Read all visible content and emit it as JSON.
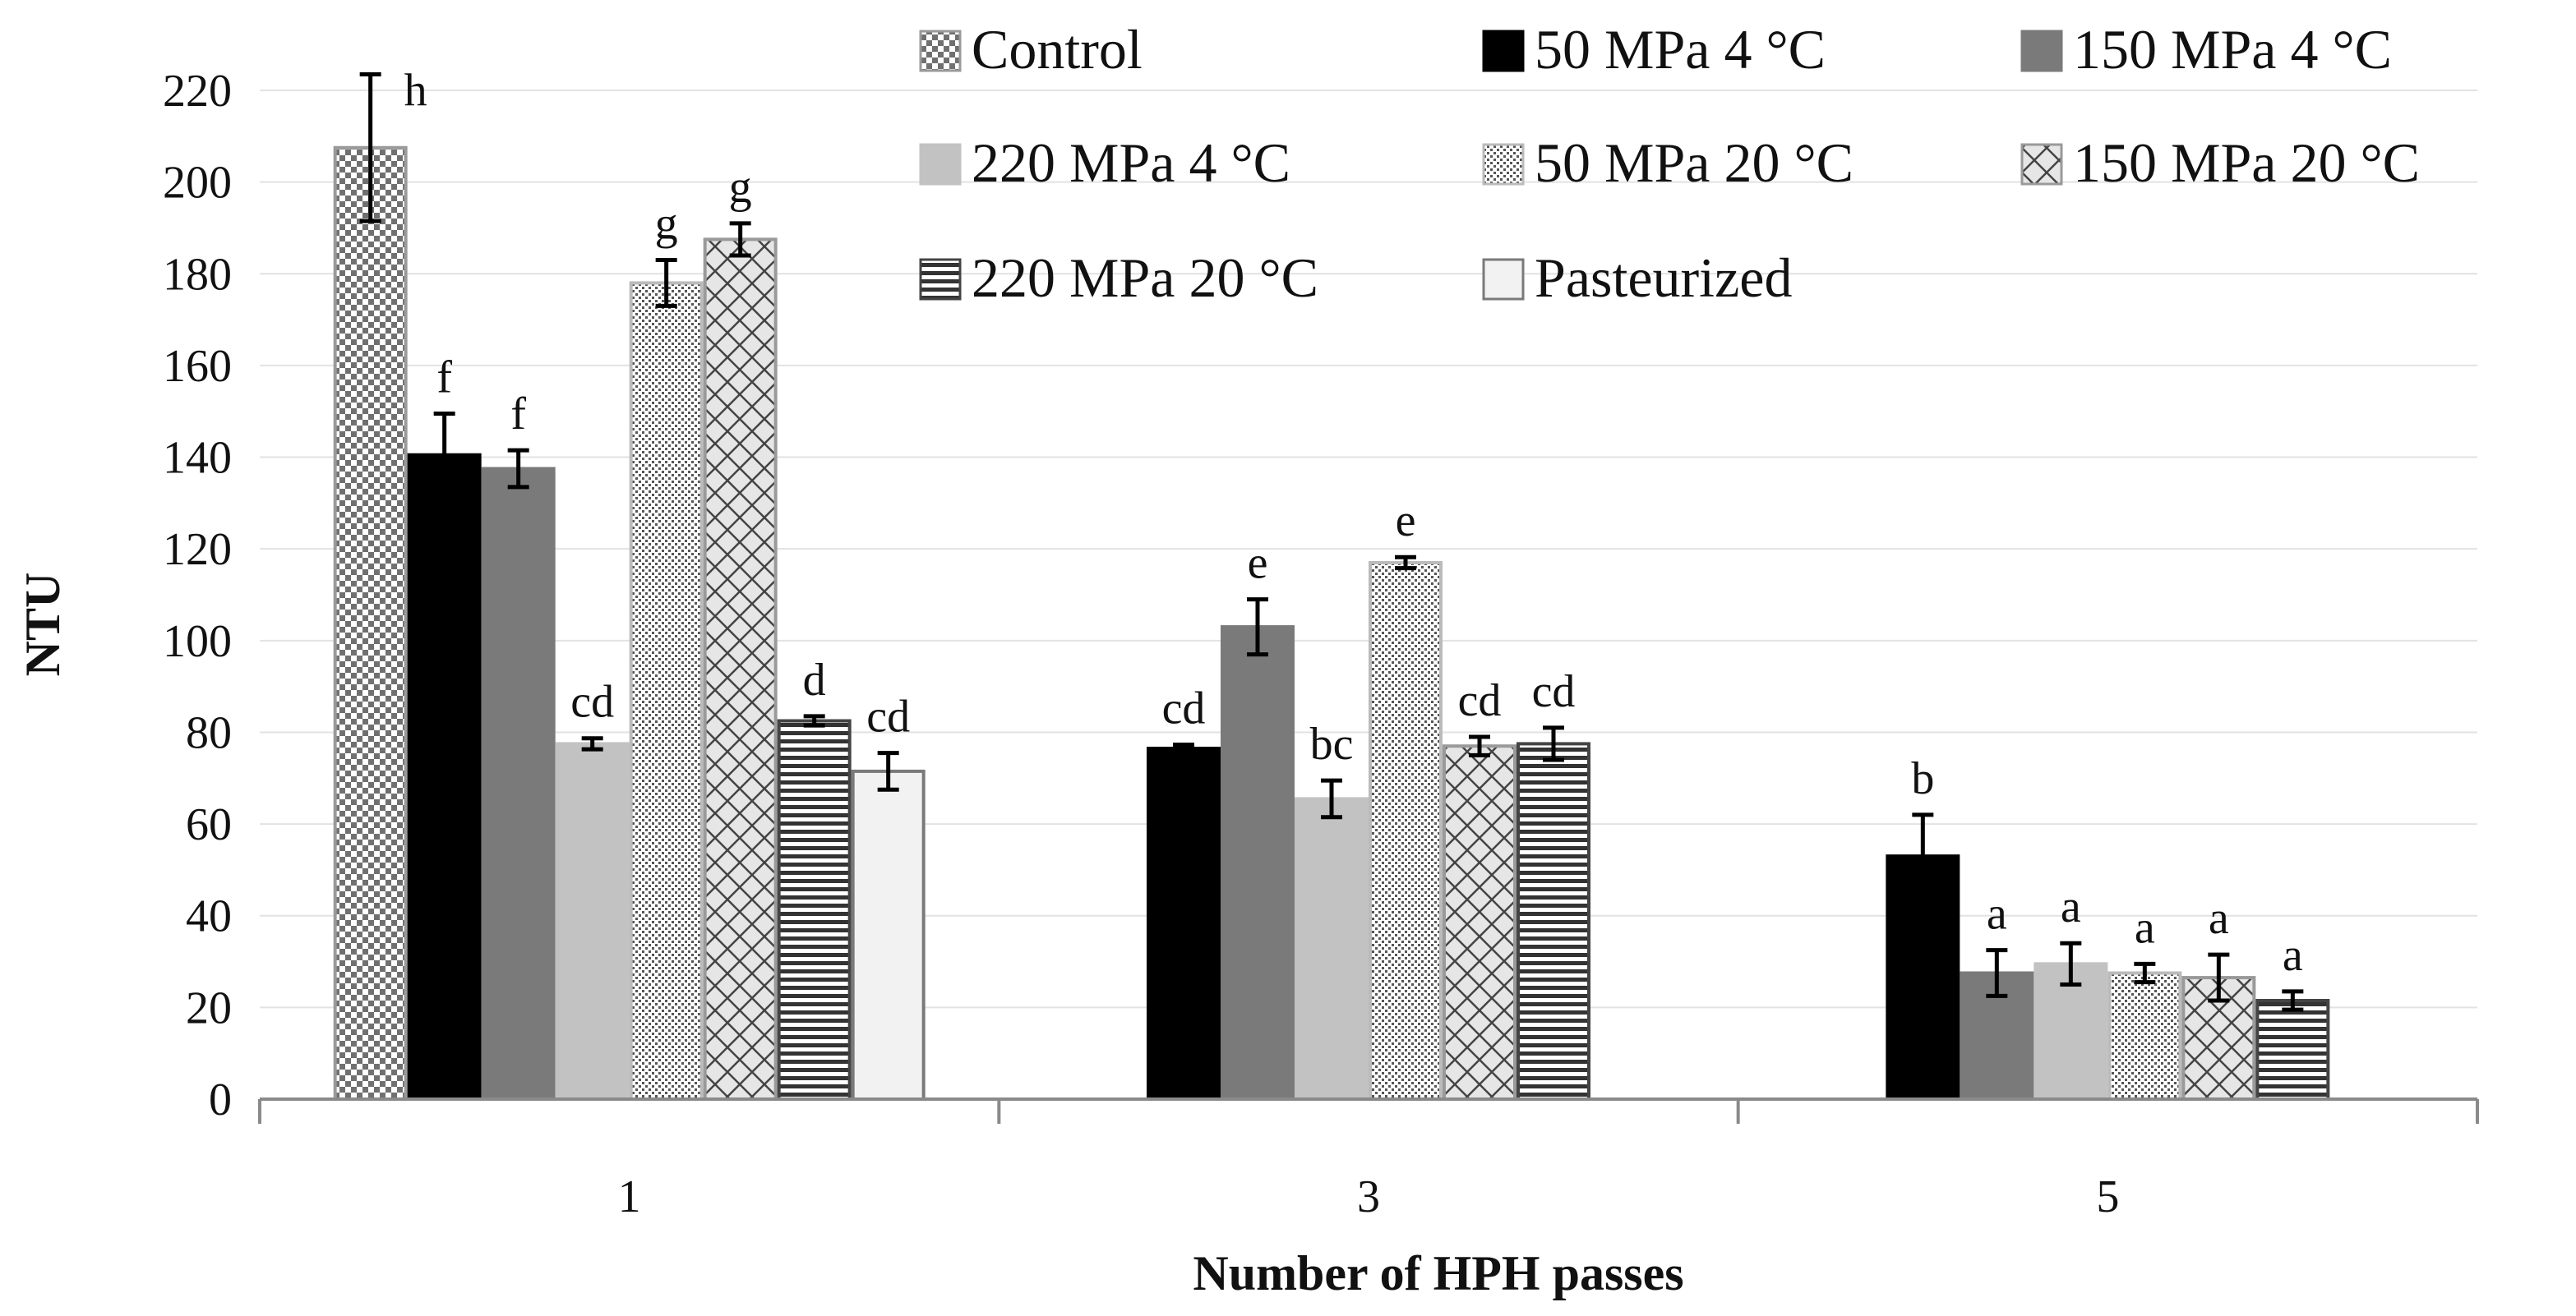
{
  "chart_data": {
    "type": "bar",
    "title": "",
    "xlabel": "Number of HPH passes",
    "ylabel": "NTU",
    "ylim": [
      0,
      220
    ],
    "yticks": [
      0,
      20,
      40,
      60,
      80,
      100,
      120,
      140,
      160,
      180,
      200,
      220
    ],
    "categories": [
      "1",
      "3",
      "5"
    ],
    "legend_position": "top-right",
    "series": [
      {
        "name": "Control",
        "pattern": "checker",
        "values": [
          207.5,
          null,
          null
        ],
        "errors": [
          16,
          null,
          null
        ],
        "labels": [
          "h",
          null,
          null
        ]
      },
      {
        "name": "50 MPa  4 °C",
        "pattern": "solid-black",
        "values": [
          140.5,
          76.5,
          53
        ],
        "errors": [
          9,
          0.8,
          9
        ],
        "labels": [
          "f",
          "cd",
          "b"
        ]
      },
      {
        "name": "150 MPa  4 °C",
        "pattern": "solid-darkgray",
        "values": [
          137.5,
          103,
          27.5
        ],
        "errors": [
          4,
          6,
          5
        ],
        "labels": [
          "f",
          "e",
          "a"
        ]
      },
      {
        "name": "220 MPa  4 °C",
        "pattern": "solid-lightgray",
        "values": [
          77.5,
          65.5,
          29.5
        ],
        "errors": [
          1.2,
          4,
          4.5
        ],
        "labels": [
          "cd",
          "bc",
          "a"
        ]
      },
      {
        "name": "50 MPa  20 °C",
        "pattern": "dotted",
        "values": [
          178,
          117,
          27.5
        ],
        "errors": [
          5,
          1.2,
          2
        ],
        "labels": [
          "g",
          "e",
          "a"
        ]
      },
      {
        "name": "150 MPa  20 °C",
        "pattern": "diagonal-cross",
        "values": [
          187.5,
          77,
          26.5
        ],
        "errors": [
          3.5,
          2,
          5
        ],
        "labels": [
          "g",
          "cd",
          "a"
        ]
      },
      {
        "name": "220 MPa  20 °C",
        "pattern": "horizontal-lines",
        "values": [
          82.5,
          77.5,
          21.5
        ],
        "errors": [
          1,
          3.5,
          2
        ],
        "labels": [
          "d",
          "cd",
          "a"
        ]
      },
      {
        "name": "Pasteurized",
        "pattern": "light-fill",
        "values": [
          71.5,
          null,
          null
        ],
        "errors": [
          4,
          null,
          null
        ],
        "labels": [
          "cd",
          null,
          null
        ]
      }
    ]
  }
}
